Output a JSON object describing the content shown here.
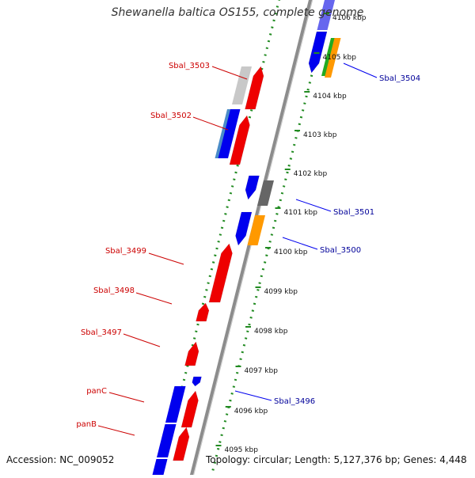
{
  "title": "Shewanella baltica OS155, complete genome",
  "accession_text": "Accession: NC_009052",
  "summary_text": "Topology: circular; Length: 5,127,376 bp; Genes: 4,448",
  "colors": {
    "forward_gene": "#ee0000",
    "reverse_gene": "#0000ee",
    "backbone": "#8c8c8c",
    "dotted_track": "#228b22",
    "left_label": "#cc0000",
    "right_label": "#000099",
    "tick_text": "#111111"
  },
  "ticks": [
    {
      "label": "4106 kbp"
    },
    {
      "label": "4105 kbp"
    },
    {
      "label": "4104 kbp"
    },
    {
      "label": "4103 kbp"
    },
    {
      "label": "4102 kbp"
    },
    {
      "label": "4101 kbp"
    },
    {
      "label": "4100 kbp"
    },
    {
      "label": "4099 kbp"
    },
    {
      "label": "4098 kbp"
    },
    {
      "label": "4097 kbp"
    },
    {
      "label": "4096 kbp"
    },
    {
      "label": "4095 kbp"
    }
  ],
  "left_labels": [
    {
      "text": "Sbal_3503"
    },
    {
      "text": "Sbal_3502"
    },
    {
      "text": "Sbal_3499"
    },
    {
      "text": "Sbal_3498"
    },
    {
      "text": "Sbal_3497"
    },
    {
      "text": "panC"
    },
    {
      "text": "panB"
    }
  ],
  "right_labels": [
    {
      "text": "Sbal_3504"
    },
    {
      "text": "Sbal_3501"
    },
    {
      "text": "Sbal_3500"
    },
    {
      "text": "Sbal_3496"
    }
  ]
}
